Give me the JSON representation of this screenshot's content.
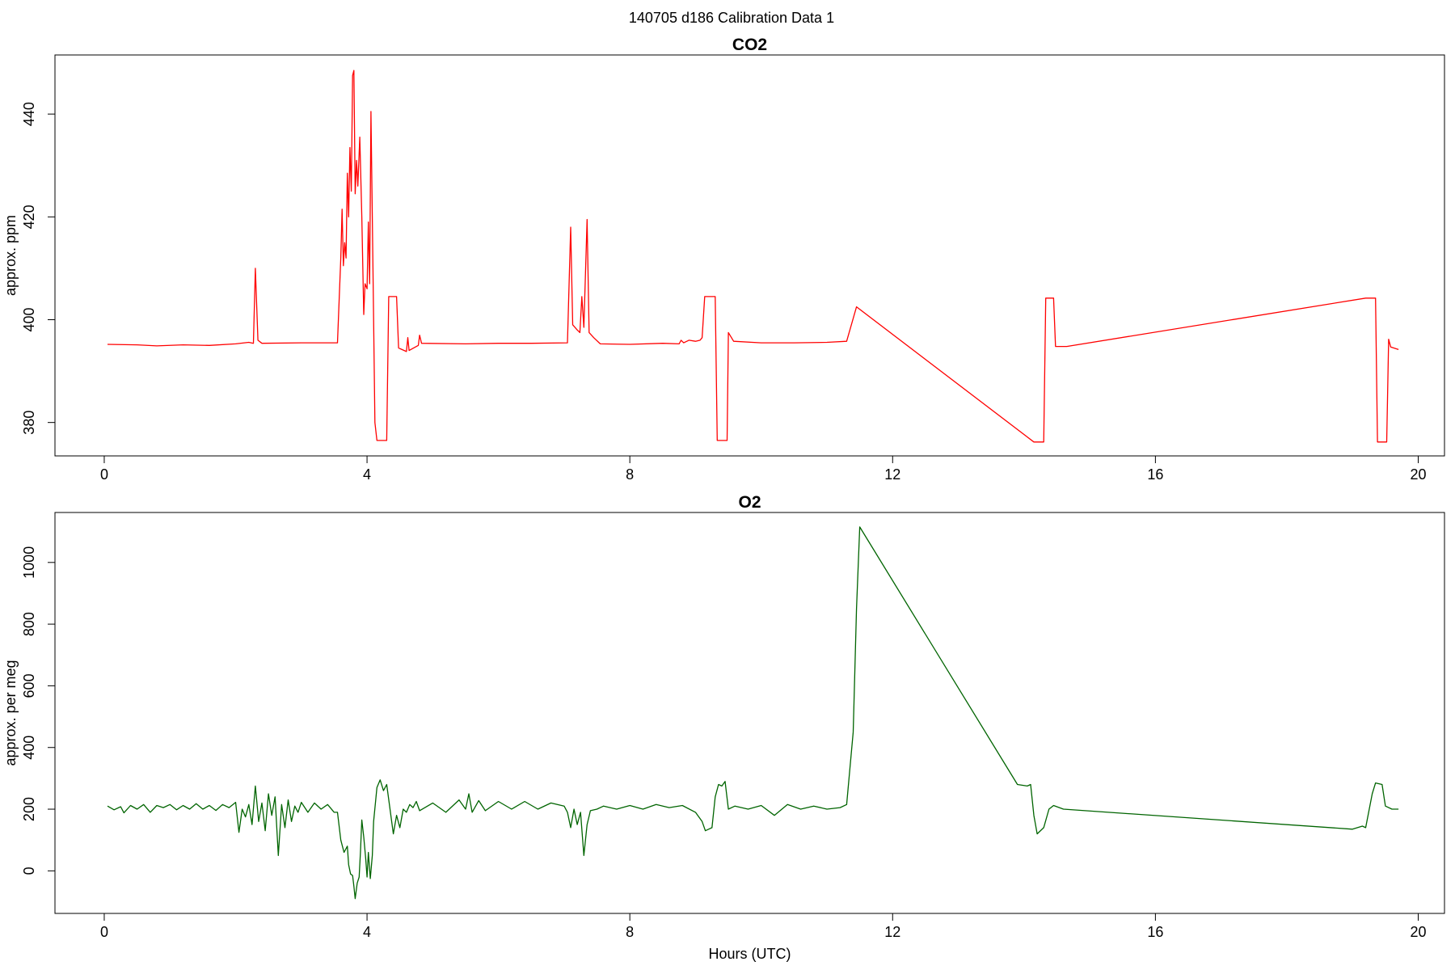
{
  "figure": {
    "super_title": "140705   d186   Calibration Data 1"
  },
  "chart_data": [
    {
      "type": "line",
      "title": "CO2",
      "xlabel": "",
      "ylabel": "approx. ppm",
      "xlim": [
        -0.75,
        20.4
      ],
      "ylim": [
        373.5,
        451.5
      ],
      "xticks": [
        0,
        4,
        8,
        12,
        16,
        20
      ],
      "yticks": [
        380,
        400,
        420,
        440
      ],
      "grid": false,
      "series": [
        {
          "color": "#ff0000",
          "points": [
            [
              0.05,
              395.2
            ],
            [
              0.5,
              395.1
            ],
            [
              0.8,
              394.9
            ],
            [
              1.2,
              395.1
            ],
            [
              1.6,
              395.0
            ],
            [
              2.0,
              395.3
            ],
            [
              2.2,
              395.6
            ],
            [
              2.27,
              395.4
            ],
            [
              2.3,
              410.0
            ],
            [
              2.34,
              396.0
            ],
            [
              2.4,
              395.4
            ],
            [
              3.0,
              395.5
            ],
            [
              3.55,
              395.5
            ],
            [
              3.6,
              412.0
            ],
            [
              3.62,
              421.5
            ],
            [
              3.64,
              410.5
            ],
            [
              3.66,
              415.0
            ],
            [
              3.68,
              412.0
            ],
            [
              3.7,
              428.5
            ],
            [
              3.72,
              420.0
            ],
            [
              3.74,
              433.5
            ],
            [
              3.76,
              425.0
            ],
            [
              3.78,
              447.5
            ],
            [
              3.8,
              448.5
            ],
            [
              3.82,
              424.5
            ],
            [
              3.84,
              431.0
            ],
            [
              3.86,
              426.0
            ],
            [
              3.89,
              435.5
            ],
            [
              3.92,
              420.0
            ],
            [
              3.95,
              401.0
            ],
            [
              3.97,
              407.0
            ],
            [
              4.0,
              406.0
            ],
            [
              4.02,
              419.0
            ],
            [
              4.04,
              407.0
            ],
            [
              4.06,
              440.5
            ],
            [
              4.09,
              410.0
            ],
            [
              4.12,
              380.0
            ],
            [
              4.15,
              376.5
            ],
            [
              4.3,
              376.5
            ],
            [
              4.33,
              404.5
            ],
            [
              4.45,
              404.5
            ],
            [
              4.48,
              394.5
            ],
            [
              4.6,
              393.8
            ],
            [
              4.62,
              396.5
            ],
            [
              4.64,
              394.0
            ],
            [
              4.78,
              395.0
            ],
            [
              4.8,
              397.0
            ],
            [
              4.83,
              395.4
            ],
            [
              5.5,
              395.3
            ],
            [
              6.0,
              395.4
            ],
            [
              6.5,
              395.4
            ],
            [
              7.05,
              395.5
            ],
            [
              7.1,
              418.0
            ],
            [
              7.13,
              399.0
            ],
            [
              7.2,
              398.0
            ],
            [
              7.24,
              397.5
            ],
            [
              7.27,
              404.5
            ],
            [
              7.3,
              398.5
            ],
            [
              7.35,
              419.5
            ],
            [
              7.38,
              397.5
            ],
            [
              7.45,
              396.5
            ],
            [
              7.55,
              395.3
            ],
            [
              8.0,
              395.2
            ],
            [
              8.5,
              395.4
            ],
            [
              8.75,
              395.3
            ],
            [
              8.78,
              396.0
            ],
            [
              8.82,
              395.5
            ],
            [
              8.9,
              396.0
            ],
            [
              9.0,
              395.8
            ],
            [
              9.07,
              396.0
            ],
            [
              9.1,
              396.5
            ],
            [
              9.14,
              404.5
            ],
            [
              9.3,
              404.5
            ],
            [
              9.33,
              376.5
            ],
            [
              9.48,
              376.5
            ],
            [
              9.5,
              397.5
            ],
            [
              9.58,
              395.8
            ],
            [
              10.0,
              395.5
            ],
            [
              10.5,
              395.5
            ],
            [
              11.0,
              395.6
            ],
            [
              11.3,
              395.8
            ],
            [
              11.45,
              402.5
            ],
            [
              14.15,
              376.2
            ],
            [
              14.3,
              376.2
            ],
            [
              14.33,
              404.2
            ],
            [
              14.45,
              404.2
            ],
            [
              14.48,
              394.8
            ],
            [
              14.65,
              394.8
            ],
            [
              19.2,
              404.2
            ],
            [
              19.35,
              404.2
            ],
            [
              19.38,
              376.2
            ],
            [
              19.52,
              376.2
            ],
            [
              19.55,
              396.2
            ],
            [
              19.58,
              394.7
            ],
            [
              19.7,
              394.2
            ]
          ]
        }
      ]
    },
    {
      "type": "line",
      "title": "O2",
      "xlabel": "Hours (UTC)",
      "ylabel": "approx. per meg",
      "xlim": [
        -0.75,
        20.4
      ],
      "ylim": [
        -138,
        1162
      ],
      "xticks": [
        0,
        4,
        8,
        12,
        16,
        20
      ],
      "yticks": [
        0,
        200,
        400,
        600,
        800,
        1000
      ],
      "grid": false,
      "series": [
        {
          "color": "#006400",
          "points": [
            [
              0.05,
              210
            ],
            [
              0.15,
              198
            ],
            [
              0.25,
              208
            ],
            [
              0.3,
              188
            ],
            [
              0.4,
              212
            ],
            [
              0.5,
              200
            ],
            [
              0.6,
              215
            ],
            [
              0.7,
              190
            ],
            [
              0.8,
              212
            ],
            [
              0.9,
              205
            ],
            [
              1.0,
              215
            ],
            [
              1.1,
              198
            ],
            [
              1.2,
              212
            ],
            [
              1.3,
              200
            ],
            [
              1.4,
              218
            ],
            [
              1.5,
              200
            ],
            [
              1.6,
              212
            ],
            [
              1.7,
              196
            ],
            [
              1.8,
              215
            ],
            [
              1.9,
              205
            ],
            [
              2.0,
              222
            ],
            [
              2.05,
              125
            ],
            [
              2.1,
              200
            ],
            [
              2.15,
              175
            ],
            [
              2.2,
              215
            ],
            [
              2.25,
              150
            ],
            [
              2.3,
              275
            ],
            [
              2.35,
              160
            ],
            [
              2.4,
              220
            ],
            [
              2.45,
              130
            ],
            [
              2.5,
              250
            ],
            [
              2.55,
              180
            ],
            [
              2.6,
              240
            ],
            [
              2.65,
              50
            ],
            [
              2.7,
              215
            ],
            [
              2.75,
              140
            ],
            [
              2.8,
              230
            ],
            [
              2.85,
              160
            ],
            [
              2.9,
              210
            ],
            [
              2.95,
              190
            ],
            [
              3.0,
              222
            ],
            [
              3.1,
              190
            ],
            [
              3.2,
              220
            ],
            [
              3.3,
              200
            ],
            [
              3.4,
              215
            ],
            [
              3.5,
              190
            ],
            [
              3.55,
              190
            ],
            [
              3.6,
              100
            ],
            [
              3.65,
              60
            ],
            [
              3.7,
              80
            ],
            [
              3.72,
              20
            ],
            [
              3.75,
              -10
            ],
            [
              3.78,
              -15
            ],
            [
              3.8,
              -50
            ],
            [
              3.82,
              -90
            ],
            [
              3.85,
              -40
            ],
            [
              3.88,
              -20
            ],
            [
              3.9,
              60
            ],
            [
              3.92,
              165
            ],
            [
              3.95,
              110
            ],
            [
              3.98,
              40
            ],
            [
              4.0,
              -20
            ],
            [
              4.02,
              60
            ],
            [
              4.05,
              -25
            ],
            [
              4.08,
              50
            ],
            [
              4.1,
              160
            ],
            [
              4.15,
              270
            ],
            [
              4.2,
              295
            ],
            [
              4.25,
              260
            ],
            [
              4.3,
              280
            ],
            [
              4.35,
              200
            ],
            [
              4.4,
              120
            ],
            [
              4.45,
              180
            ],
            [
              4.5,
              140
            ],
            [
              4.55,
              200
            ],
            [
              4.6,
              190
            ],
            [
              4.65,
              215
            ],
            [
              4.7,
              205
            ],
            [
              4.75,
              225
            ],
            [
              4.8,
              195
            ],
            [
              5.0,
              220
            ],
            [
              5.2,
              190
            ],
            [
              5.4,
              230
            ],
            [
              5.5,
              200
            ],
            [
              5.55,
              250
            ],
            [
              5.6,
              190
            ],
            [
              5.7,
              228
            ],
            [
              5.8,
              195
            ],
            [
              6.0,
              225
            ],
            [
              6.2,
              200
            ],
            [
              6.4,
              225
            ],
            [
              6.6,
              200
            ],
            [
              6.8,
              220
            ],
            [
              7.0,
              210
            ],
            [
              7.05,
              190
            ],
            [
              7.1,
              140
            ],
            [
              7.15,
              200
            ],
            [
              7.2,
              150
            ],
            [
              7.25,
              190
            ],
            [
              7.3,
              50
            ],
            [
              7.35,
              150
            ],
            [
              7.4,
              195
            ],
            [
              7.5,
              200
            ],
            [
              7.6,
              210
            ],
            [
              7.8,
              200
            ],
            [
              8.0,
              212
            ],
            [
              8.2,
              200
            ],
            [
              8.4,
              215
            ],
            [
              8.6,
              205
            ],
            [
              8.8,
              212
            ],
            [
              9.0,
              190
            ],
            [
              9.1,
              160
            ],
            [
              9.15,
              130
            ],
            [
              9.2,
              135
            ],
            [
              9.25,
              140
            ],
            [
              9.3,
              240
            ],
            [
              9.35,
              280
            ],
            [
              9.4,
              275
            ],
            [
              9.45,
              290
            ],
            [
              9.5,
              200
            ],
            [
              9.6,
              210
            ],
            [
              9.8,
              200
            ],
            [
              10.0,
              212
            ],
            [
              10.2,
              180
            ],
            [
              10.4,
              215
            ],
            [
              10.6,
              200
            ],
            [
              10.8,
              210
            ],
            [
              11.0,
              200
            ],
            [
              11.2,
              205
            ],
            [
              11.3,
              215
            ],
            [
              11.4,
              450
            ],
            [
              11.45,
              850
            ],
            [
              11.5,
              1115
            ],
            [
              13.9,
              280
            ],
            [
              14.05,
              275
            ],
            [
              14.1,
              280
            ],
            [
              14.15,
              180
            ],
            [
              14.2,
              120
            ],
            [
              14.3,
              140
            ],
            [
              14.38,
              200
            ],
            [
              14.45,
              212
            ],
            [
              14.6,
              200
            ],
            [
              19.0,
              135
            ],
            [
              19.15,
              145
            ],
            [
              19.2,
              140
            ],
            [
              19.3,
              250
            ],
            [
              19.35,
              285
            ],
            [
              19.45,
              280
            ],
            [
              19.5,
              210
            ],
            [
              19.6,
              200
            ],
            [
              19.7,
              200
            ]
          ]
        }
      ]
    }
  ]
}
